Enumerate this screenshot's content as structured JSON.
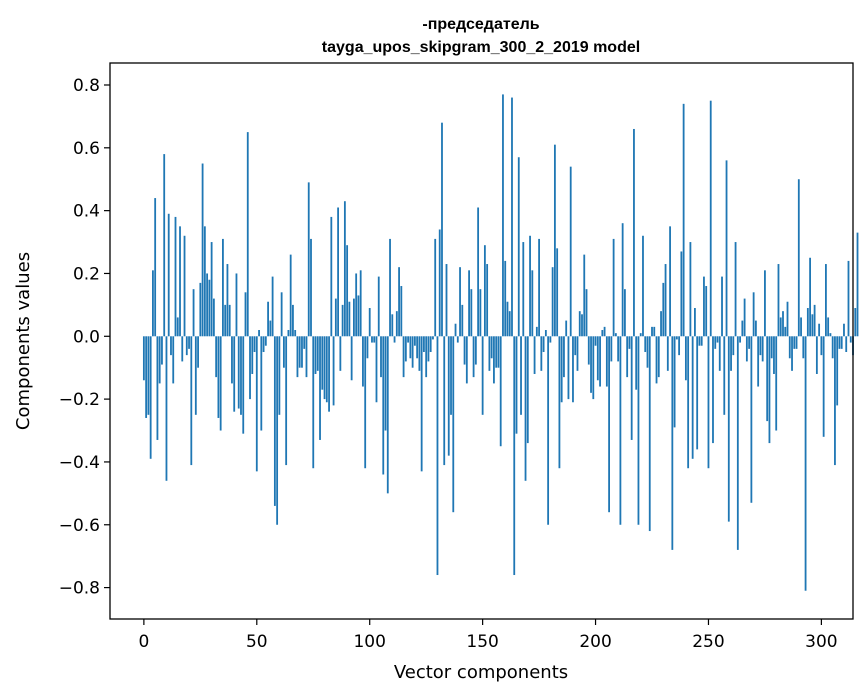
{
  "chart_data": {
    "type": "bar",
    "title_lines": [
      "-председатель",
      "tayga_upos_skipgram_300_2_2019 model"
    ],
    "xlabel": "Vector components",
    "ylabel": "Components values",
    "xlim": [
      -15,
      314
    ],
    "ylim": [
      -0.9,
      0.87
    ],
    "xticks": [
      0,
      50,
      100,
      150,
      200,
      250,
      300
    ],
    "xtick_labels": [
      "0",
      "50",
      "100",
      "150",
      "200",
      "250",
      "300"
    ],
    "yticks": [
      -0.8,
      -0.6,
      -0.4,
      -0.2,
      0.0,
      0.2,
      0.4,
      0.6,
      0.8
    ],
    "ytick_labels": [
      "−0.8",
      "−0.6",
      "−0.4",
      "−0.2",
      "0.0",
      "0.2",
      "0.4",
      "0.6",
      "0.8"
    ],
    "bar_color": "#1f77b4",
    "grid": false,
    "x_start": 0,
    "values": [
      -0.14,
      -0.26,
      -0.25,
      -0.39,
      0.21,
      0.44,
      -0.33,
      -0.15,
      -0.09,
      0.58,
      -0.46,
      0.39,
      -0.06,
      -0.15,
      0.38,
      0.06,
      0.35,
      -0.08,
      0.32,
      -0.06,
      -0.04,
      -0.41,
      0.15,
      -0.25,
      -0.1,
      0.17,
      0.55,
      0.35,
      0.2,
      0.18,
      0.3,
      0.12,
      -0.13,
      -0.26,
      -0.3,
      0.31,
      0.1,
      0.23,
      0.1,
      -0.15,
      -0.24,
      0.2,
      -0.23,
      -0.25,
      -0.31,
      0.14,
      0.65,
      -0.2,
      -0.12,
      -0.05,
      -0.43,
      0.02,
      -0.3,
      -0.05,
      -0.03,
      0.11,
      0.05,
      0.19,
      -0.54,
      -0.6,
      -0.25,
      0.14,
      -0.1,
      -0.41,
      0.02,
      0.26,
      0.1,
      0.02,
      -0.13,
      -0.1,
      -0.1,
      -0.04,
      -0.13,
      0.49,
      0.31,
      -0.42,
      -0.12,
      -0.11,
      -0.33,
      -0.17,
      -0.2,
      -0.21,
      -0.24,
      0.38,
      -0.22,
      0.12,
      0.41,
      -0.11,
      0.1,
      0.43,
      0.29,
      0.11,
      -0.14,
      0.12,
      0.2,
      0.13,
      0.21,
      -0.16,
      -0.42,
      -0.07,
      0.09,
      -0.02,
      -0.02,
      -0.21,
      0.19,
      -0.13,
      -0.44,
      -0.3,
      -0.5,
      0.31,
      0.07,
      -0.02,
      0.08,
      0.22,
      0.16,
      -0.13,
      -0.08,
      -0.02,
      -0.07,
      -0.1,
      -0.03,
      -0.07,
      -0.11,
      -0.43,
      -0.05,
      -0.13,
      -0.08,
      -0.05,
      -0.01,
      0.31,
      -0.76,
      0.34,
      0.68,
      -0.41,
      0.23,
      -0.38,
      -0.25,
      -0.56,
      0.04,
      -0.02,
      0.22,
      0.1,
      -0.09,
      -0.15,
      0.21,
      0.15,
      -0.13,
      -0.09,
      0.41,
      0.15,
      -0.25,
      0.29,
      0.23,
      -0.11,
      -0.07,
      -0.15,
      -0.1,
      -0.1,
      -0.35,
      0.77,
      0.24,
      0.11,
      0.08,
      0.76,
      -0.76,
      -0.31,
      0.57,
      -0.25,
      0.3,
      -0.46,
      -0.34,
      0.32,
      0.21,
      -0.12,
      0.03,
      0.31,
      -0.11,
      -0.05,
      0.02,
      -0.6,
      -0.02,
      0.22,
      0.61,
      0.28,
      -0.42,
      -0.21,
      -0.13,
      0.05,
      -0.2,
      0.54,
      -0.21,
      -0.06,
      -0.11,
      0.08,
      0.07,
      0.26,
      0.15,
      -0.09,
      -0.18,
      -0.2,
      -0.03,
      -0.14,
      -0.16,
      0.02,
      0.03,
      -0.16,
      -0.56,
      -0.08,
      0.31,
      0.01,
      -0.08,
      -0.6,
      0.36,
      0.15,
      -0.13,
      -0.04,
      -0.33,
      0.66,
      -0.17,
      -0.6,
      0.01,
      0.32,
      -0.05,
      -0.1,
      -0.62,
      0.03,
      0.03,
      -0.15,
      -0.13,
      0.08,
      0.17,
      0.23,
      -0.11,
      0.35,
      -0.68,
      -0.29,
      -0.01,
      -0.06,
      0.27,
      0.74,
      -0.14,
      -0.42,
      0.3,
      -0.39,
      0.09,
      -0.36,
      -0.03,
      -0.03,
      0.19,
      0.16,
      -0.42,
      0.75,
      -0.34,
      -0.04,
      -0.02,
      -0.11,
      0.19,
      -0.25,
      0.56,
      -0.59,
      -0.11,
      -0.06,
      0.3,
      -0.68,
      -0.02,
      0.05,
      0.12,
      -0.08,
      -0.04,
      -0.53,
      0.14,
      0.05,
      -0.16,
      -0.06,
      -0.08,
      0.21,
      -0.27,
      -0.34,
      -0.07,
      -0.12,
      -0.3,
      0.23,
      0.06,
      0.08,
      0.03,
      0.11,
      -0.07,
      -0.11,
      -0.04,
      -0.04,
      0.5,
      0.06,
      -0.07,
      -0.81,
      0.09,
      0.25,
      0.07,
      0.1,
      -0.12,
      0.04,
      -0.06,
      -0.32,
      0.23,
      0.06,
      0.01,
      -0.07,
      -0.41,
      -0.22,
      -0.04,
      -0.04,
      0.04,
      -0.05,
      0.24,
      -0.02,
      -0.06,
      0.09,
      0.33
    ]
  }
}
